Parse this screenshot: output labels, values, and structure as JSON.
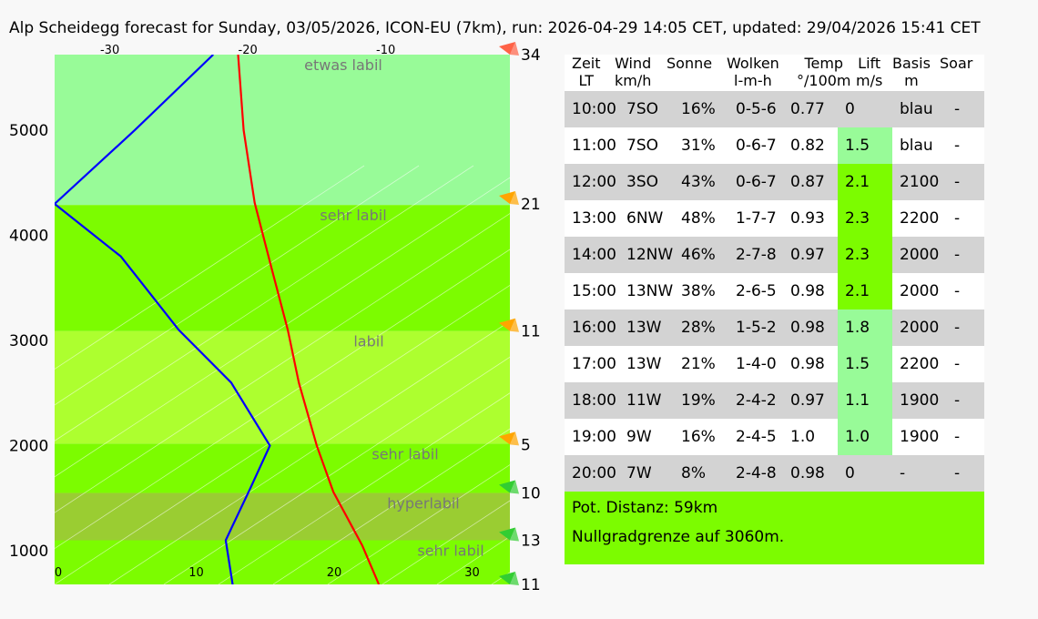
{
  "title": "Alp Scheidegg forecast for Sunday, 03/05/2026, ICON-EU (7km), run: 2026-04-29 14:05 CET, updated: 29/04/2026 15:41 CET",
  "chart_data": {
    "type": "line",
    "ylim": [
      680,
      5720
    ],
    "y_ticks": [
      1000,
      2000,
      3000,
      4000,
      5000
    ],
    "x_bottom": {
      "range": [
        0,
        33
      ],
      "ticks": [
        0,
        10,
        20,
        30
      ]
    },
    "x_top": {
      "range": [
        -34,
        -1
      ],
      "ticks": [
        -30,
        -20,
        -10
      ]
    },
    "grid": "diagonal",
    "layers": [
      {
        "label": "sehr labil",
        "from": 680,
        "to": 1100,
        "color": "#7cfc00"
      },
      {
        "label": "hyperlabil",
        "from": 1100,
        "to": 1550,
        "color": "#9acd32"
      },
      {
        "label": "sehr labil",
        "from": 1550,
        "to": 2020,
        "color": "#7cfc00"
      },
      {
        "label": "labil",
        "from": 2020,
        "to": 3090,
        "color": "#adff2f"
      },
      {
        "label": "sehr labil",
        "from": 3090,
        "to": 4290,
        "color": "#7cfc00"
      },
      {
        "label": "etwas labil",
        "from": 4290,
        "to": 5720,
        "color": "#98fb98"
      }
    ],
    "series": [
      {
        "color": "#ff0000",
        "x": [
          23.5,
          22.3,
          20.2,
          19.0,
          17.7,
          16.9,
          15.7,
          14.5,
          13.7,
          13.3
        ],
        "y": [
          680,
          1050,
          1560,
          2000,
          2600,
          3100,
          3700,
          4310,
          5000,
          5720
        ]
      },
      {
        "color": "#0000ff",
        "x": [
          12.9,
          12.4,
          14.2,
          15.6,
          12.8,
          9.0,
          4.8,
          0.0,
          5.8,
          11.5
        ],
        "y": [
          680,
          1100,
          1600,
          2000,
          2600,
          3100,
          3800,
          4300,
          5000,
          5720
        ]
      }
    ],
    "wind": [
      {
        "value": "11",
        "y": 680,
        "color": "#32cd32"
      },
      {
        "value": "13",
        "y": 1100,
        "color": "#32cd32"
      },
      {
        "value": "10",
        "y": 1550,
        "color": "#32cd32"
      },
      {
        "value": "5",
        "y": 2010,
        "color": "#ffa500"
      },
      {
        "value": "11",
        "y": 3090,
        "color": "#ffa500"
      },
      {
        "value": "21",
        "y": 4300,
        "color": "#ffa500"
      },
      {
        "value": "34",
        "y": 5720,
        "color": "#ff6347"
      }
    ]
  },
  "table": {
    "headers": [
      {
        "line1": "Zeit",
        "line2": "LT"
      },
      {
        "line1": "Wind",
        "line2": "km/h"
      },
      {
        "line1": "Sonne",
        "line2": ""
      },
      {
        "line1": "Wolken",
        "line2": "l-m-h"
      },
      {
        "line1": "Temp",
        "line2": "°/100m"
      },
      {
        "line1": "Lift",
        "line2": "m/s"
      },
      {
        "line1": "Basis",
        "line2": "m"
      },
      {
        "line1": "Soar",
        "line2": ""
      }
    ],
    "rows": [
      {
        "time": "10:00",
        "wind": "7SO",
        "sun": "16%",
        "clouds": "0-5-6",
        "temp": "0.77",
        "lift": "0",
        "lift_color": "",
        "base": "blau",
        "soar": "-"
      },
      {
        "time": "11:00",
        "wind": "7SO",
        "sun": "31%",
        "clouds": "0-6-7",
        "temp": "0.82",
        "lift": "1.5",
        "lift_color": "good",
        "base": "blau",
        "soar": "-"
      },
      {
        "time": "12:00",
        "wind": "3SO",
        "sun": "43%",
        "clouds": "0-6-7",
        "temp": "0.87",
        "lift": "2.1",
        "lift_color": "great",
        "base": "2100",
        "soar": "-"
      },
      {
        "time": "13:00",
        "wind": "6NW",
        "sun": "48%",
        "clouds": "1-7-7",
        "temp": "0.93",
        "lift": "2.3",
        "lift_color": "great",
        "base": "2200",
        "soar": "-"
      },
      {
        "time": "14:00",
        "wind": "12NW",
        "sun": "46%",
        "clouds": "2-7-8",
        "temp": "0.97",
        "lift": "2.3",
        "lift_color": "great",
        "base": "2000",
        "soar": "-"
      },
      {
        "time": "15:00",
        "wind": "13NW",
        "sun": "38%",
        "clouds": "2-6-5",
        "temp": "0.98",
        "lift": "2.1",
        "lift_color": "great",
        "base": "2000",
        "soar": "-"
      },
      {
        "time": "16:00",
        "wind": "13W",
        "sun": "28%",
        "clouds": "1-5-2",
        "temp": "0.98",
        "lift": "1.8",
        "lift_color": "good",
        "base": "2000",
        "soar": "-"
      },
      {
        "time": "17:00",
        "wind": "13W",
        "sun": "21%",
        "clouds": "1-4-0",
        "temp": "0.98",
        "lift": "1.5",
        "lift_color": "good",
        "base": "2200",
        "soar": "-"
      },
      {
        "time": "18:00",
        "wind": "11W",
        "sun": "19%",
        "clouds": "2-4-2",
        "temp": "0.97",
        "lift": "1.1",
        "lift_color": "good",
        "base": "1900",
        "soar": "-"
      },
      {
        "time": "19:00",
        "wind": "9W",
        "sun": "16%",
        "clouds": "2-4-5",
        "temp": "1.0",
        "lift": "1.0",
        "lift_color": "good",
        "base": "1900",
        "soar": "-"
      },
      {
        "time": "20:00",
        "wind": "7W",
        "sun": "8%",
        "clouds": "2-4-8",
        "temp": "0.98",
        "lift": "0",
        "lift_color": "",
        "base": "-",
        "soar": "-"
      }
    ]
  },
  "summary": {
    "distance": "Pot. Distanz: 59km",
    "freezing": "Nullgradgrenze auf 3060m."
  }
}
